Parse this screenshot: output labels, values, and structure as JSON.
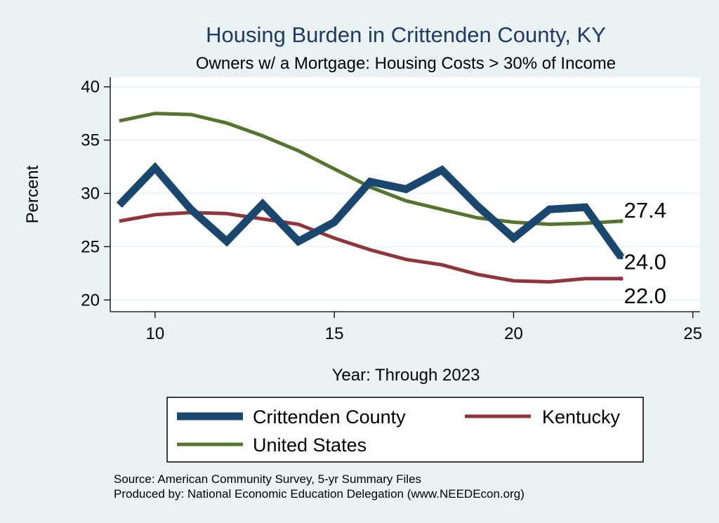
{
  "chart_data": {
    "type": "line",
    "title": "Housing Burden in Crittenden County, KY",
    "subtitle": "Owners w/ a Mortgage: Housing Costs > 30% of Income",
    "xlabel": "Year: Through 2023",
    "ylabel": "Percent",
    "xlim": [
      8.75,
      25.2
    ],
    "ylim": [
      18.9,
      40.9
    ],
    "xticks": [
      10,
      15,
      20,
      25
    ],
    "yticks": [
      20,
      25,
      30,
      35,
      40
    ],
    "grid": true,
    "series": [
      {
        "name": "Crittenden County",
        "color": "#1a476f",
        "x": [
          9,
          10,
          11,
          12,
          13,
          14,
          15,
          16,
          17,
          18,
          19,
          20,
          21,
          22,
          23
        ],
        "values": [
          28.9,
          32.4,
          28.5,
          25.5,
          29.0,
          25.5,
          27.3,
          31.1,
          30.4,
          32.2,
          28.8,
          25.8,
          28.5,
          28.7,
          24.0
        ],
        "end_label": "24.0"
      },
      {
        "name": "Kentucky",
        "color": "#90353b",
        "x": [
          9,
          10,
          11,
          12,
          13,
          14,
          15,
          16,
          17,
          18,
          19,
          20,
          21,
          22,
          23
        ],
        "values": [
          27.4,
          28.0,
          28.2,
          28.1,
          27.6,
          27.1,
          25.8,
          24.7,
          23.8,
          23.3,
          22.4,
          21.8,
          21.7,
          22.0,
          22.0
        ],
        "end_label": "22.0"
      },
      {
        "name": "United States",
        "color": "#55752f",
        "x": [
          9,
          10,
          11,
          12,
          13,
          14,
          15,
          16,
          17,
          18,
          19,
          20,
          21,
          22,
          23
        ],
        "values": [
          36.8,
          37.5,
          37.4,
          36.6,
          35.4,
          34.0,
          32.3,
          30.6,
          29.3,
          28.5,
          27.7,
          27.3,
          27.1,
          27.2,
          27.4
        ],
        "end_label": "27.4"
      }
    ],
    "legend": {
      "position": "bottom",
      "items": [
        "Crittenden County",
        "Kentucky",
        "United States"
      ]
    }
  },
  "notes": {
    "source": "Source: American Community Survey, 5-yr Summary Files",
    "produced": "Produced by: National Economic Education Delegation (www.NEEDEcon.org)"
  }
}
